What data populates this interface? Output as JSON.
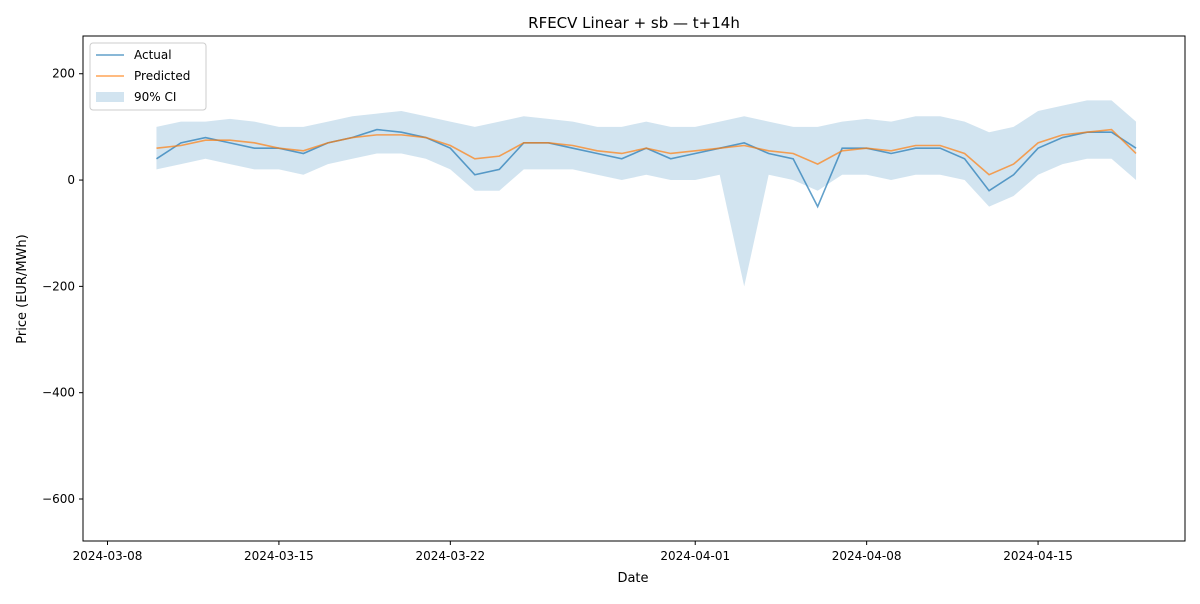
{
  "chart_data": {
    "type": "line",
    "title": "RFECV Linear + sb — t+14h",
    "x_label": "Date",
    "y_label": "Price (EUR/MWh)",
    "x": [
      "2024-03-10",
      "2024-03-11",
      "2024-03-12",
      "2024-03-13",
      "2024-03-14",
      "2024-03-15",
      "2024-03-16",
      "2024-03-17",
      "2024-03-18",
      "2024-03-19",
      "2024-03-20",
      "2024-03-21",
      "2024-03-22",
      "2024-03-23",
      "2024-03-24",
      "2024-03-25",
      "2024-03-26",
      "2024-03-27",
      "2024-03-28",
      "2024-03-29",
      "2024-03-30",
      "2024-03-31",
      "2024-04-01",
      "2024-04-02",
      "2024-04-03",
      "2024-04-04",
      "2024-04-05",
      "2024-04-06",
      "2024-04-07",
      "2024-04-08",
      "2024-04-09",
      "2024-04-10",
      "2024-04-11",
      "2024-04-12",
      "2024-04-13",
      "2024-04-14",
      "2024-04-15",
      "2024-04-16",
      "2024-04-17",
      "2024-04-18",
      "2024-04-19"
    ],
    "series": [
      {
        "name": "Actual",
        "color": "#1f77b4",
        "values": [
          40,
          70,
          80,
          70,
          60,
          60,
          50,
          70,
          80,
          95,
          90,
          80,
          60,
          10,
          20,
          70,
          70,
          60,
          50,
          40,
          60,
          40,
          50,
          60,
          70,
          50,
          40,
          -50,
          60,
          60,
          50,
          60,
          60,
          40,
          -20,
          10,
          60,
          80,
          90,
          90,
          60
        ]
      },
      {
        "name": "Predicted",
        "color": "#ff7f0e",
        "values": [
          60,
          65,
          75,
          75,
          70,
          60,
          55,
          70,
          80,
          85,
          85,
          80,
          65,
          40,
          45,
          70,
          70,
          65,
          55,
          50,
          60,
          50,
          55,
          60,
          65,
          55,
          50,
          30,
          55,
          60,
          55,
          65,
          65,
          50,
          10,
          30,
          70,
          85,
          90,
          95,
          50
        ]
      }
    ],
    "ci": {
      "name": "90% CI",
      "color": "#1f77b4",
      "lower": [
        20,
        30,
        40,
        30,
        20,
        20,
        10,
        30,
        40,
        50,
        50,
        40,
        20,
        -20,
        -20,
        20,
        20,
        20,
        10,
        0,
        10,
        0,
        0,
        10,
        -200,
        10,
        0,
        -20,
        10,
        10,
        0,
        10,
        10,
        0,
        -50,
        -30,
        10,
        30,
        40,
        40,
        0
      ],
      "upper": [
        100,
        110,
        110,
        115,
        110,
        100,
        100,
        110,
        120,
        125,
        130,
        120,
        110,
        100,
        110,
        120,
        115,
        110,
        100,
        100,
        110,
        100,
        100,
        110,
        120,
        110,
        100,
        100,
        110,
        115,
        110,
        120,
        120,
        110,
        90,
        100,
        130,
        140,
        150,
        150,
        110
      ]
    },
    "xlim": [
      "2024-03-07",
      "2024-04-21"
    ],
    "xticks": [
      "2024-03-08",
      "2024-03-15",
      "2024-03-22",
      "2024-04-01",
      "2024-04-08",
      "2024-04-15"
    ],
    "ylim": [
      -679,
      271
    ],
    "yticks": [
      {
        "value": -600,
        "label": "−600"
      },
      {
        "value": -400,
        "label": "−400"
      },
      {
        "value": -200,
        "label": "−200"
      },
      0,
      200
    ],
    "legend": "upper left",
    "grid": false
  }
}
